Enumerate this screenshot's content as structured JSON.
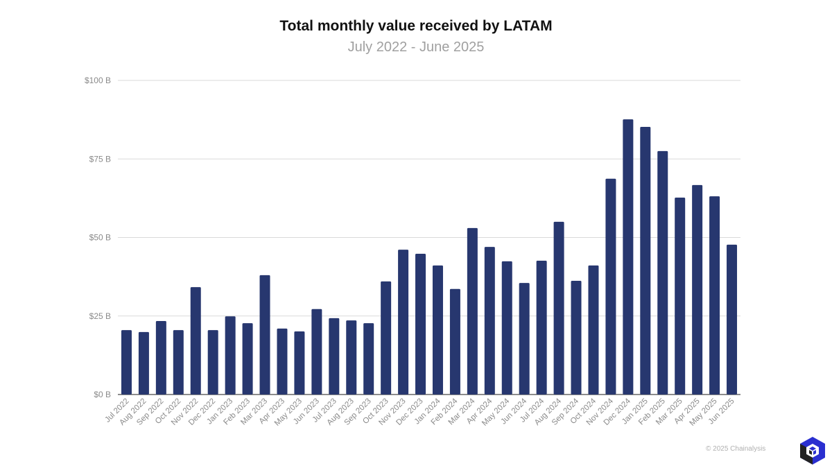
{
  "chart_data": {
    "type": "bar",
    "title": "Total monthly value received by LATAM",
    "subtitle": "July 2022 - June 2025",
    "xlabel": "",
    "ylabel": "",
    "ylim": [
      0,
      100
    ],
    "yticks": [
      0,
      25,
      50,
      75,
      100
    ],
    "ytick_labels": [
      "$0 B",
      "$25 B",
      "$50 B",
      "$75 B",
      "$100 B"
    ],
    "grid": true,
    "bar_color": "#27376f",
    "categories": [
      "Jul 2022",
      "Aug 2022",
      "Sep 2022",
      "Oct 2022",
      "Nov 2022",
      "Dec 2022",
      "Jan 2023",
      "Feb 2023",
      "Mar 2023",
      "Apr 2023",
      "May 2023",
      "Jun 2023",
      "Jul 2023",
      "Aug 2023",
      "Sep 2023",
      "Oct 2023",
      "Nov 2023",
      "Dec 2023",
      "Jan 2024",
      "Feb 2024",
      "Mar 2024",
      "Apr 2024",
      "May 2024",
      "Jun 2024",
      "Jul 2024",
      "Aug 2024",
      "Sep 2024",
      "Oct 2024",
      "Nov 2024",
      "Dec 2024",
      "Jan 2025",
      "Feb 2025",
      "Mar 2025",
      "Apr 2025",
      "May 2025",
      "Jun 2025"
    ],
    "values": [
      20.5,
      19.9,
      23.4,
      20.5,
      34.2,
      20.5,
      24.9,
      22.7,
      38.0,
      21.0,
      20.1,
      27.2,
      24.3,
      23.6,
      22.7,
      36.0,
      46.1,
      44.8,
      41.1,
      33.6,
      53.0,
      47.0,
      42.4,
      35.5,
      42.6,
      55.0,
      36.2,
      41.1,
      68.7,
      87.6,
      85.2,
      77.5,
      62.7,
      66.7,
      63.1,
      47.7
    ]
  },
  "footer": {
    "credit": "© 2025 Chainalysis",
    "logo_icon": "chainalysis-logo-icon"
  }
}
